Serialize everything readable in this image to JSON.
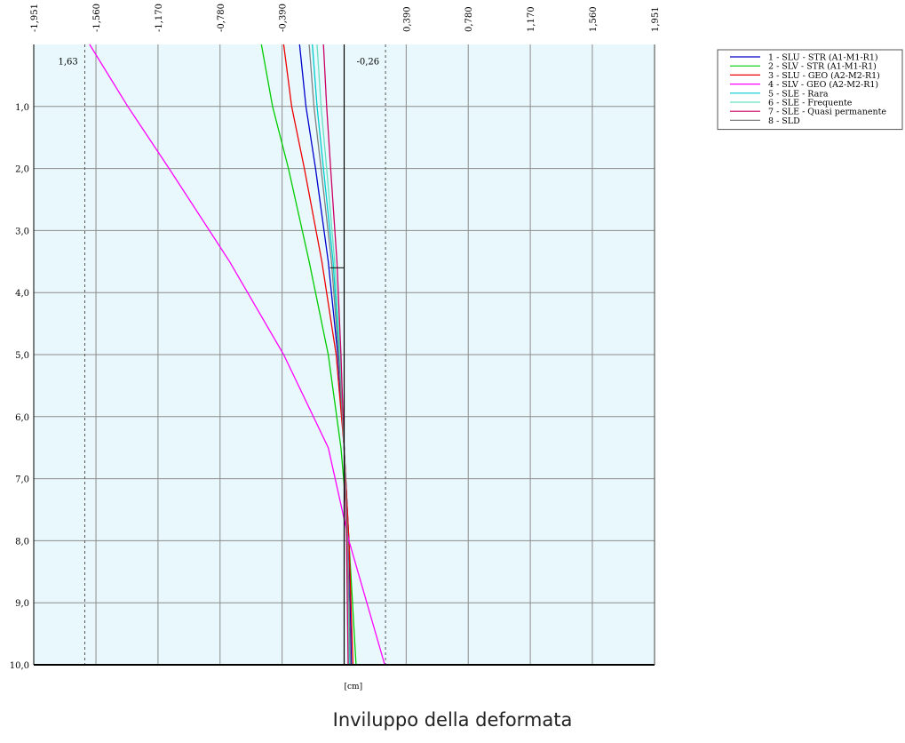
{
  "caption": "Inviluppo della deformata",
  "chart_data": {
    "type": "line",
    "title": "",
    "xlabel": "[cm]",
    "ylabel": "",
    "xlim": [
      -1.951,
      1.951
    ],
    "ylim": [
      0,
      10
    ],
    "x_ticks": [
      "-1,951",
      "-1,560",
      "-1,170",
      "-0,780",
      "-0,390",
      "0,390",
      "0,780",
      "1,170",
      "1,560",
      "1,951"
    ],
    "x_tick_values": [
      -1.951,
      -1.56,
      -1.17,
      -0.78,
      -0.39,
      0.39,
      0.78,
      1.17,
      1.56,
      1.951
    ],
    "y_ticks": [
      "1,0",
      "2,0",
      "3,0",
      "4,0",
      "5,0",
      "6,0",
      "7,0",
      "8,0",
      "9,0",
      "10,0"
    ],
    "y_tick_values": [
      1,
      2,
      3,
      4,
      5,
      6,
      7,
      8,
      9,
      10
    ],
    "y_inverted": true,
    "grid": true,
    "legend_position": "right",
    "annotations": [
      {
        "text": "1,63",
        "x": -1.63,
        "y": 0.15
      },
      {
        "text": "-0,26",
        "x": 0.26,
        "y": 0.15
      }
    ],
    "envelope_lines": [
      -1.63,
      0.26
    ],
    "marker_depth": 3.6,
    "series": [
      {
        "name": "1 - SLU - STR (A1-M1-R1)",
        "color": "#0000cc",
        "x": [
          -0.28,
          -0.24,
          -0.18,
          -0.1,
          -0.04,
          0.0,
          0.03,
          0.045
        ],
        "y": [
          0,
          1,
          2,
          3.5,
          5,
          6.5,
          8,
          10
        ]
      },
      {
        "name": "2 - SLV - STR (A1-M1-R1)",
        "color": "#00cc00",
        "x": [
          -0.52,
          -0.45,
          -0.35,
          -0.22,
          -0.1,
          -0.02,
          0.03,
          0.075
        ],
        "y": [
          0,
          1,
          2,
          3.5,
          5,
          6.5,
          8,
          10
        ]
      },
      {
        "name": "3 - SLU - GEO (A2-M2-R1)",
        "color": "#ee0000",
        "x": [
          -0.38,
          -0.33,
          -0.25,
          -0.14,
          -0.05,
          0.0,
          0.03,
          0.055
        ],
        "y": [
          0,
          1,
          2,
          3.5,
          5,
          6.5,
          8,
          10
        ]
      },
      {
        "name": "4 - SLV - GEO (A2-M2-R1)",
        "color": "#ff00ff",
        "x": [
          -1.6,
          -1.36,
          -1.1,
          -0.72,
          -0.38,
          -0.1,
          0.03,
          0.255
        ],
        "y": [
          0,
          1,
          2,
          3.5,
          5,
          6.5,
          8,
          10
        ]
      },
      {
        "name": "5 - SLE - Rara",
        "color": "#00cccc",
        "x": [
          -0.2,
          -0.17,
          -0.13,
          -0.07,
          -0.03,
          0.0,
          0.02,
          0.035
        ],
        "y": [
          0,
          1,
          2,
          3.5,
          5,
          6.5,
          8,
          10
        ]
      },
      {
        "name": "6 - SLE - Frequente",
        "color": "#66e0c0",
        "x": [
          -0.17,
          -0.145,
          -0.11,
          -0.06,
          -0.025,
          0.0,
          0.018,
          0.03
        ],
        "y": [
          0,
          1,
          2,
          3.5,
          5,
          6.5,
          8,
          10
        ]
      },
      {
        "name": "7 - SLE - Quasi permanente",
        "color": "#cc0066",
        "x": [
          -0.13,
          -0.11,
          -0.085,
          -0.045,
          -0.02,
          0.0,
          0.015,
          0.025
        ],
        "y": [
          0,
          1,
          2,
          3.5,
          5,
          6.5,
          8,
          10
        ]
      },
      {
        "name": "8 - SLD",
        "color": "#808080",
        "x": [
          -0.22,
          -0.19,
          -0.145,
          -0.08,
          -0.035,
          0.0,
          0.022,
          0.04
        ],
        "y": [
          0,
          1,
          2,
          3.5,
          5,
          6.5,
          8,
          10
        ]
      }
    ]
  }
}
